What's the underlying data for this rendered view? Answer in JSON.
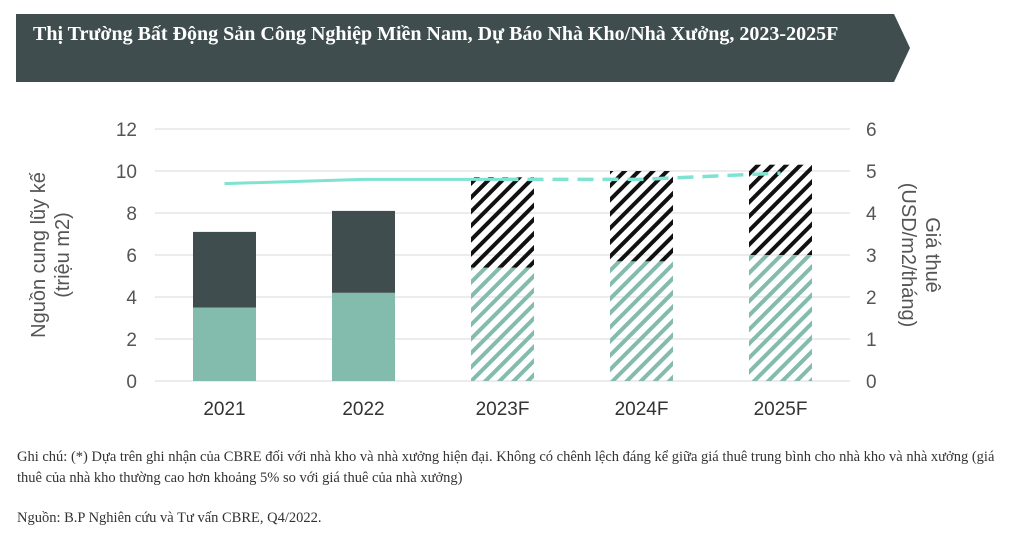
{
  "title": "Thị Trường Bất Động Sản Công Nghiệp Miền Nam, Dự Báo Nhà Kho/Nhà Xưởng, 2023-2025F",
  "note": "Ghi chú: (*) Dựa trên ghi nhận của CBRE đối với nhà kho và nhà xưởng hiện đại. Không có chênh lệch đáng kể giữa giá thuê trung bình cho nhà kho và nhà xưởng (giá thuê của nhà kho thường cao hơn khoảng 5% so với giá thuê của nhà xưởng)",
  "source": "Nguồn: B.P Nghiên cứu và Tư vấn CBRE, Q4/2022.",
  "colors": {
    "banner": "#3f4d4f",
    "base": "#83bbad",
    "top": "#3f4d4f",
    "rent": "#7fe3d2",
    "hatch_top": "#111111",
    "axis_text": "#555555"
  },
  "chart_data": {
    "type": "bar",
    "categories": [
      "2021",
      "2022",
      "2023F",
      "2024F",
      "2025F"
    ],
    "forecast": [
      false,
      false,
      true,
      true,
      true
    ],
    "series": [
      {
        "values": [
          3.5,
          4.2,
          5.4,
          5.7,
          6.0
        ]
      },
      {
        "values": [
          3.6,
          3.9,
          4.3,
          4.3,
          4.3
        ]
      }
    ],
    "line": {
      "axis": "right",
      "values": [
        4.7,
        4.8,
        4.8,
        4.8,
        4.95
      ]
    },
    "ylabel_left": [
      "Nguồn cung lũy kế",
      "(triệu m2)"
    ],
    "ylabel_right": [
      "Giá thuê",
      "(USD/m2/tháng)"
    ],
    "ylim_left": [
      0,
      12
    ],
    "ylim_right": [
      0,
      6
    ],
    "yticks_left": [
      "0",
      "2",
      "4",
      "6",
      "8",
      "10",
      "12"
    ],
    "yticks_right": [
      "0",
      "1",
      "2",
      "3",
      "4",
      "5",
      "6"
    ],
    "grid": true
  }
}
